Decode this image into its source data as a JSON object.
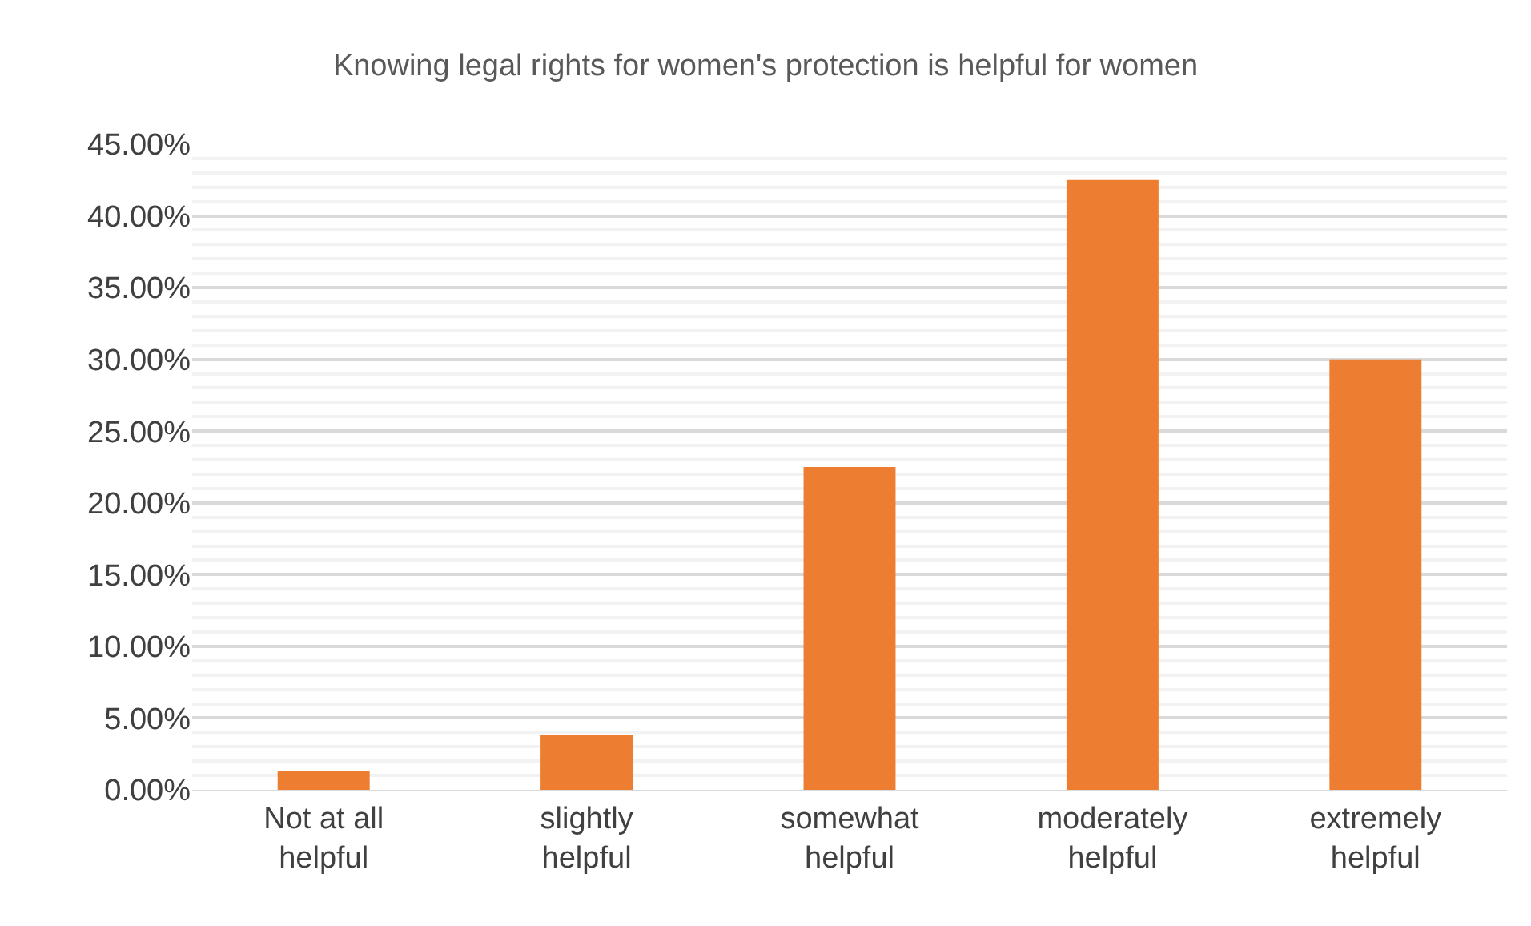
{
  "chart_data": {
    "type": "bar",
    "title": "Knowing legal rights for women's protection is helpful for women",
    "categories": [
      "Not at all helpful",
      "slightly helpful",
      "somewhat helpful",
      "moderately helpful",
      "extremely helpful"
    ],
    "values": [
      1.3,
      3.8,
      22.5,
      42.5,
      30.0
    ],
    "color": "#ed7d31",
    "ylim": [
      0,
      45
    ],
    "yticks": [
      {
        "value": 0,
        "label": "0.00%"
      },
      {
        "value": 5,
        "label": "5.00%"
      },
      {
        "value": 10,
        "label": "10.00%"
      },
      {
        "value": 15,
        "label": "15.00%"
      },
      {
        "value": 20,
        "label": "20.00%"
      },
      {
        "value": 25,
        "label": "25.00%"
      },
      {
        "value": 30,
        "label": "30.00%"
      },
      {
        "value": 35,
        "label": "35.00%"
      },
      {
        "value": 40,
        "label": "40.00%"
      },
      {
        "value": 45,
        "label": "45.00%"
      }
    ],
    "grid": "y"
  }
}
